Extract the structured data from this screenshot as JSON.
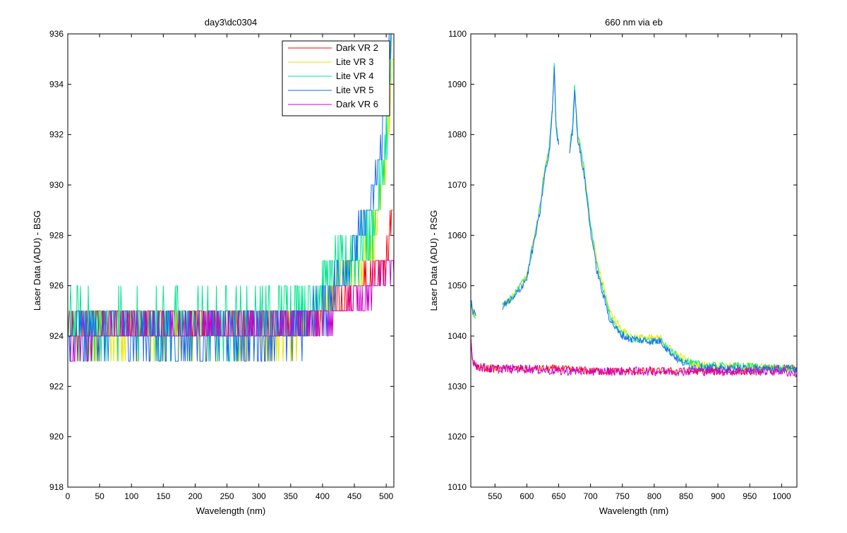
{
  "window": {
    "background": "#ffffff"
  },
  "chart_data": [
    {
      "type": "line",
      "title": "day3\\dc0304",
      "xlabel": "Wavelength (nm)",
      "ylabel": "Laser Data (ADU) - BSG",
      "xlim": [
        0,
        512
      ],
      "ylim": [
        918,
        936
      ],
      "xticks": [
        0,
        50,
        100,
        150,
        200,
        250,
        300,
        350,
        400,
        450,
        500
      ],
      "yticks": [
        918,
        920,
        922,
        924,
        926,
        928,
        930,
        932,
        934,
        936
      ],
      "grid": false,
      "legend_position": "top-right",
      "series": [
        {
          "name": "Dark VR 2",
          "color": "#ff0000",
          "points": [
            [
              0,
              924.5
            ],
            [
              10,
              924
            ],
            [
              20,
              924.5
            ],
            [
              50,
              924.5
            ],
            [
              100,
              924.5
            ],
            [
              150,
              924.5
            ],
            [
              200,
              924.5
            ],
            [
              250,
              924.5
            ],
            [
              300,
              924.5
            ],
            [
              350,
              924.5
            ],
            [
              400,
              925
            ],
            [
              430,
              925.5
            ],
            [
              460,
              926
            ],
            [
              480,
              926.5
            ],
            [
              500,
              927
            ],
            [
              505,
              928
            ],
            [
              510,
              929
            ]
          ],
          "noise": 0.6
        },
        {
          "name": "Lite VR 3",
          "color": "#e6e600",
          "points": [
            [
              0,
              924
            ],
            [
              20,
              924
            ],
            [
              50,
              924
            ],
            [
              100,
              924
            ],
            [
              150,
              924
            ],
            [
              200,
              924
            ],
            [
              250,
              924
            ],
            [
              300,
              924
            ],
            [
              350,
              924.2
            ],
            [
              380,
              924.5
            ],
            [
              400,
              925
            ],
            [
              420,
              926
            ],
            [
              440,
              926.5
            ],
            [
              460,
              927
            ],
            [
              470,
              927.5
            ],
            [
              480,
              928
            ],
            [
              490,
              929
            ],
            [
              500,
              931
            ],
            [
              505,
              933
            ],
            [
              512,
              935
            ]
          ],
          "noise": 0.8
        },
        {
          "name": "Lite VR 4",
          "color": "#00e68c",
          "points": [
            [
              0,
              924.5
            ],
            [
              20,
              924.5
            ],
            [
              50,
              924.5
            ],
            [
              100,
              924.5
            ],
            [
              150,
              924.5
            ],
            [
              200,
              924.5
            ],
            [
              250,
              924.5
            ],
            [
              300,
              924.7
            ],
            [
              350,
              925
            ],
            [
              380,
              925.3
            ],
            [
              400,
              926
            ],
            [
              420,
              926.5
            ],
            [
              440,
              927
            ],
            [
              460,
              927.5
            ],
            [
              480,
              928.5
            ],
            [
              490,
              929.5
            ],
            [
              500,
              932
            ],
            [
              505,
              934
            ],
            [
              512,
              936
            ]
          ],
          "noise": 1.2
        },
        {
          "name": "Lite VR 5",
          "color": "#1a66ff",
          "points": [
            [
              0,
              924
            ],
            [
              20,
              924
            ],
            [
              50,
              924
            ],
            [
              100,
              924
            ],
            [
              150,
              924
            ],
            [
              200,
              924
            ],
            [
              250,
              924
            ],
            [
              300,
              924
            ],
            [
              350,
              924.2
            ],
            [
              380,
              924.5
            ],
            [
              400,
              925
            ],
            [
              420,
              926
            ],
            [
              440,
              927
            ],
            [
              460,
              928
            ],
            [
              480,
              929.5
            ],
            [
              490,
              931
            ],
            [
              500,
              933.5
            ],
            [
              505,
              935
            ],
            [
              512,
              936
            ]
          ],
          "noise": 1.0
        },
        {
          "name": "Dark VR 6",
          "color": "#cc00cc",
          "points": [
            [
              0,
              924
            ],
            [
              10,
              923
            ],
            [
              20,
              924
            ],
            [
              30,
              924
            ],
            [
              50,
              924.2
            ],
            [
              100,
              924.2
            ],
            [
              150,
              924.2
            ],
            [
              200,
              924.2
            ],
            [
              250,
              924.2
            ],
            [
              300,
              924.2
            ],
            [
              350,
              924.4
            ],
            [
              400,
              924.6
            ],
            [
              430,
              925
            ],
            [
              460,
              925.5
            ],
            [
              480,
              926
            ],
            [
              500,
              926.5
            ],
            [
              512,
              926.5
            ]
          ],
          "noise": 0.6
        }
      ]
    },
    {
      "type": "line",
      "title": "660 nm via eb",
      "xlabel": "Wavelength (nm)",
      "ylabel": "Laser Data (ADU) - RSG",
      "xlim": [
        512,
        1024
      ],
      "ylim": [
        1010,
        1100
      ],
      "xticks": [
        550,
        600,
        650,
        700,
        750,
        800,
        850,
        900,
        950,
        1000
      ],
      "yticks": [
        1010,
        1020,
        1030,
        1040,
        1050,
        1060,
        1070,
        1080,
        1090,
        1100
      ],
      "grid": false,
      "series": [
        {
          "name": "Dark VR 2",
          "color": "#ff0000",
          "segments": [
            [
              [
                512,
                1040
              ],
              [
                515,
                1035
              ],
              [
                520,
                1034
              ],
              [
                540,
                1033.5
              ],
              [
                600,
                1033.5
              ],
              [
                650,
                1033.5
              ],
              [
                700,
                1033
              ],
              [
                750,
                1033
              ],
              [
                800,
                1033
              ],
              [
                850,
                1033
              ],
              [
                900,
                1033
              ],
              [
                950,
                1033
              ],
              [
                1000,
                1033.5
              ],
              [
                1024,
                1033.5
              ]
            ]
          ],
          "noise": 0.8
        },
        {
          "name": "Lite VR 3",
          "color": "#e6e600",
          "segments": [
            [
              [
                512,
                1047
              ],
              [
                515,
                1045
              ],
              [
                520,
                1044
              ]
            ],
            [
              [
                562,
                1046
              ],
              [
                580,
                1048
              ],
              [
                600,
                1052
              ],
              [
                620,
                1065
              ],
              [
                628,
                1073
              ],
              [
                635,
                1077
              ],
              [
                640,
                1085
              ],
              [
                643,
                1093
              ],
              [
                646,
                1082
              ],
              [
                650,
                1078
              ]
            ],
            [
              [
                667,
                1077
              ],
              [
                672,
                1082
              ],
              [
                675,
                1089
              ],
              [
                680,
                1080
              ],
              [
                690,
                1073
              ],
              [
                700,
                1062
              ],
              [
                710,
                1055
              ],
              [
                720,
                1050
              ],
              [
                730,
                1045
              ],
              [
                745,
                1042
              ],
              [
                760,
                1040
              ],
              [
                790,
                1039.5
              ],
              [
                810,
                1039.5
              ],
              [
                820,
                1038
              ],
              [
                840,
                1036
              ],
              [
                860,
                1034.5
              ],
              [
                900,
                1034
              ],
              [
                950,
                1034
              ],
              [
                1000,
                1033.5
              ],
              [
                1024,
                1033.5
              ]
            ]
          ],
          "noise": 0.8
        },
        {
          "name": "Lite VR 4",
          "color": "#00e68c",
          "segments": [
            [
              [
                512,
                1046
              ],
              [
                515,
                1045
              ],
              [
                520,
                1043.5
              ]
            ],
            [
              [
                562,
                1046
              ],
              [
                580,
                1048
              ],
              [
                600,
                1052
              ],
              [
                620,
                1065
              ],
              [
                628,
                1073
              ],
              [
                635,
                1077
              ],
              [
                640,
                1085
              ],
              [
                643,
                1094
              ],
              [
                646,
                1082
              ],
              [
                650,
                1078
              ]
            ],
            [
              [
                667,
                1077
              ],
              [
                672,
                1082
              ],
              [
                675,
                1090
              ],
              [
                680,
                1080
              ],
              [
                690,
                1073
              ],
              [
                700,
                1062
              ],
              [
                710,
                1054
              ],
              [
                720,
                1049
              ],
              [
                730,
                1044
              ],
              [
                745,
                1041
              ],
              [
                760,
                1039.5
              ],
              [
                790,
                1039
              ],
              [
                810,
                1039
              ],
              [
                820,
                1037.5
              ],
              [
                840,
                1035.5
              ],
              [
                860,
                1034.5
              ],
              [
                900,
                1034
              ],
              [
                950,
                1034
              ],
              [
                1000,
                1033.5
              ],
              [
                1024,
                1033.5
              ]
            ]
          ],
          "noise": 0.8
        },
        {
          "name": "Lite VR 5",
          "color": "#1a66ff",
          "segments": [
            [
              [
                512,
                1047
              ],
              [
                515,
                1045
              ],
              [
                520,
                1044
              ]
            ],
            [
              [
                562,
                1046
              ],
              [
                580,
                1047.5
              ],
              [
                600,
                1051.5
              ],
              [
                620,
                1064
              ],
              [
                628,
                1072
              ],
              [
                635,
                1076
              ],
              [
                640,
                1085
              ],
              [
                643,
                1093
              ],
              [
                646,
                1081
              ],
              [
                650,
                1078
              ]
            ],
            [
              [
                667,
                1077
              ],
              [
                672,
                1081
              ],
              [
                675,
                1089
              ],
              [
                680,
                1079
              ],
              [
                690,
                1072
              ],
              [
                700,
                1061
              ],
              [
                710,
                1053
              ],
              [
                720,
                1048
              ],
              [
                730,
                1043.5
              ],
              [
                745,
                1040.5
              ],
              [
                760,
                1039.5
              ],
              [
                790,
                1039
              ],
              [
                810,
                1039
              ],
              [
                820,
                1037.5
              ],
              [
                840,
                1035
              ],
              [
                860,
                1034
              ],
              [
                900,
                1033.5
              ],
              [
                950,
                1033.5
              ],
              [
                1000,
                1033.5
              ],
              [
                1024,
                1033.5
              ]
            ]
          ],
          "noise": 0.8
        },
        {
          "name": "Dark VR 6",
          "color": "#cc00cc",
          "segments": [
            [
              [
                512,
                1040
              ],
              [
                515,
                1035
              ],
              [
                520,
                1034
              ],
              [
                540,
                1033.5
              ],
              [
                600,
                1033.5
              ],
              [
                650,
                1033
              ],
              [
                700,
                1033
              ],
              [
                750,
                1033
              ],
              [
                800,
                1033
              ],
              [
                850,
                1033
              ],
              [
                900,
                1033
              ],
              [
                950,
                1033
              ],
              [
                1000,
                1033
              ],
              [
                1024,
                1032.5
              ]
            ]
          ],
          "noise": 0.9
        }
      ]
    }
  ]
}
